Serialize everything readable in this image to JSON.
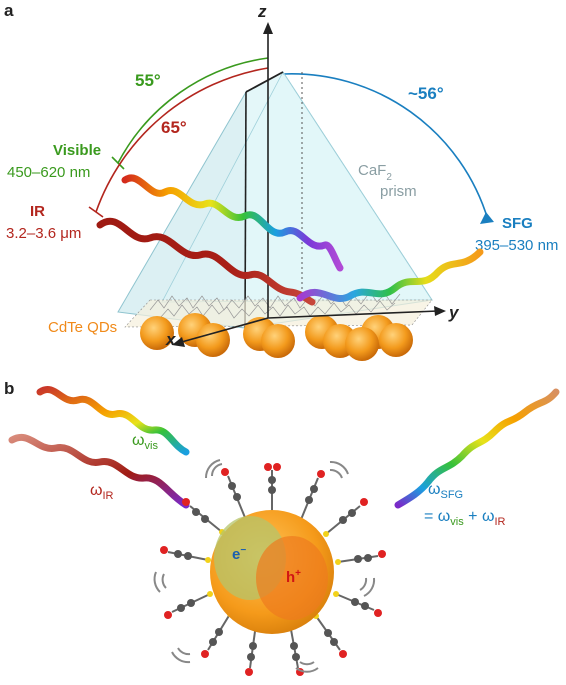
{
  "panel_a": {
    "label": "a",
    "axis_z": "z",
    "axis_y": "y",
    "axis_x": "x",
    "angle_visible": "55°",
    "angle_ir": "65°",
    "angle_sfg": "~56°",
    "visible_title": "Visible",
    "visible_range": "450–620 nm",
    "ir_title": "IR",
    "ir_range": "3.2–3.6 μm",
    "sfg_title": "SFG",
    "sfg_range": "395–530 nm",
    "prism_label_1": "CaF",
    "prism_label_sub": "2",
    "prism_label_2": "prism",
    "qd_label": "CdTe QDs"
  },
  "panel_b": {
    "label": "b",
    "omega_vis": "ω",
    "omega_vis_sub": "vis",
    "omega_ir": "ω",
    "omega_ir_sub": "IR",
    "omega_sfg": "ω",
    "omega_sfg_sub": "SFG",
    "eq_eq": "= ω",
    "eq_vis_sub": "vis",
    "eq_plus": " + ω",
    "eq_ir_sub": "IR",
    "electron": "e",
    "electron_sup": "−",
    "hole": "h",
    "hole_sup": "+"
  },
  "colors": {
    "visible_green": "#3a9a1e",
    "ir_red": "#b3261e",
    "sfg_blue": "#1a7fc0",
    "qd_orange": "#f39a1c",
    "prism_cyan": "#bfeaf0"
  }
}
